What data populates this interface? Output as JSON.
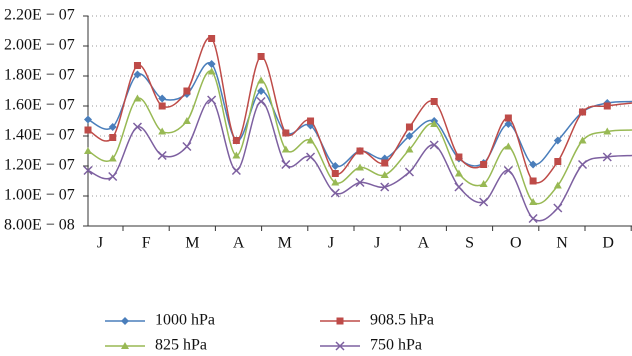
{
  "chart_data": {
    "type": "line",
    "categories": [
      "J",
      null,
      "F",
      null,
      "M",
      null,
      "A",
      null,
      "M",
      null,
      "J",
      null,
      "J",
      null,
      "A",
      null,
      "S",
      null,
      "O",
      null,
      "N",
      null,
      "D"
    ],
    "ylim": [
      8e-08,
      2.2e-07
    ],
    "yticks": [
      {
        "value": 8e-08,
        "label": "8.00E − 08"
      },
      {
        "value": 1e-07,
        "label": "1.00E − 07"
      },
      {
        "value": 1.2e-07,
        "label": "1.20E − 07"
      },
      {
        "value": 1.4e-07,
        "label": "1.40E − 07"
      },
      {
        "value": 1.6e-07,
        "label": "1.60E − 07"
      },
      {
        "value": 1.8e-07,
        "label": "1.80E − 07"
      },
      {
        "value": 2e-07,
        "label": "2.00E − 07"
      },
      {
        "value": 2.2e-07,
        "label": "2.20E − 07"
      }
    ],
    "grid": true,
    "series": [
      {
        "name": "1000 hPa",
        "color": "#4a7ebb",
        "marker": "diamond",
        "values": [
          1.51e-07,
          1.46e-07,
          1.81e-07,
          1.65e-07,
          1.68e-07,
          1.88e-07,
          1.37e-07,
          1.7e-07,
          1.42e-07,
          1.47e-07,
          1.2e-07,
          1.3e-07,
          1.25e-07,
          1.4e-07,
          1.5e-07,
          1.25e-07,
          1.22e-07,
          1.48e-07,
          1.21e-07,
          1.37e-07,
          1.56e-07,
          1.62e-07,
          1.63e-07
        ]
      },
      {
        "name": "908.5 hPa",
        "color": "#be4b48",
        "marker": "square",
        "values": [
          1.44e-07,
          1.39e-07,
          1.87e-07,
          1.6e-07,
          1.7e-07,
          2.05e-07,
          1.37e-07,
          1.93e-07,
          1.42e-07,
          1.5e-07,
          1.15e-07,
          1.3e-07,
          1.22e-07,
          1.46e-07,
          1.63e-07,
          1.26e-07,
          1.21e-07,
          1.52e-07,
          1.1e-07,
          1.23e-07,
          1.56e-07,
          1.6e-07,
          1.62e-07
        ]
      },
      {
        "name": "825 hPa",
        "color": "#98b954",
        "marker": "triangle",
        "values": [
          1.3e-07,
          1.25e-07,
          1.65e-07,
          1.43e-07,
          1.5e-07,
          1.83e-07,
          1.27e-07,
          1.77e-07,
          1.31e-07,
          1.37e-07,
          1.09e-07,
          1.19e-07,
          1.14e-07,
          1.31e-07,
          1.48e-07,
          1.15e-07,
          1.08e-07,
          1.33e-07,
          9.6e-08,
          1.07e-07,
          1.37e-07,
          1.43e-07,
          1.44e-07
        ]
      },
      {
        "name": "750 hPa",
        "color": "#7d60a0",
        "marker": "x",
        "values": [
          1.17e-07,
          1.13e-07,
          1.46e-07,
          1.27e-07,
          1.33e-07,
          1.64e-07,
          1.17e-07,
          1.63e-07,
          1.21e-07,
          1.26e-07,
          1.02e-07,
          1.09e-07,
          1.06e-07,
          1.16e-07,
          1.34e-07,
          1.06e-07,
          9.6e-08,
          1.17e-07,
          8.5e-08,
          9.2e-08,
          1.21e-07,
          1.26e-07,
          1.27e-07
        ]
      }
    ]
  }
}
